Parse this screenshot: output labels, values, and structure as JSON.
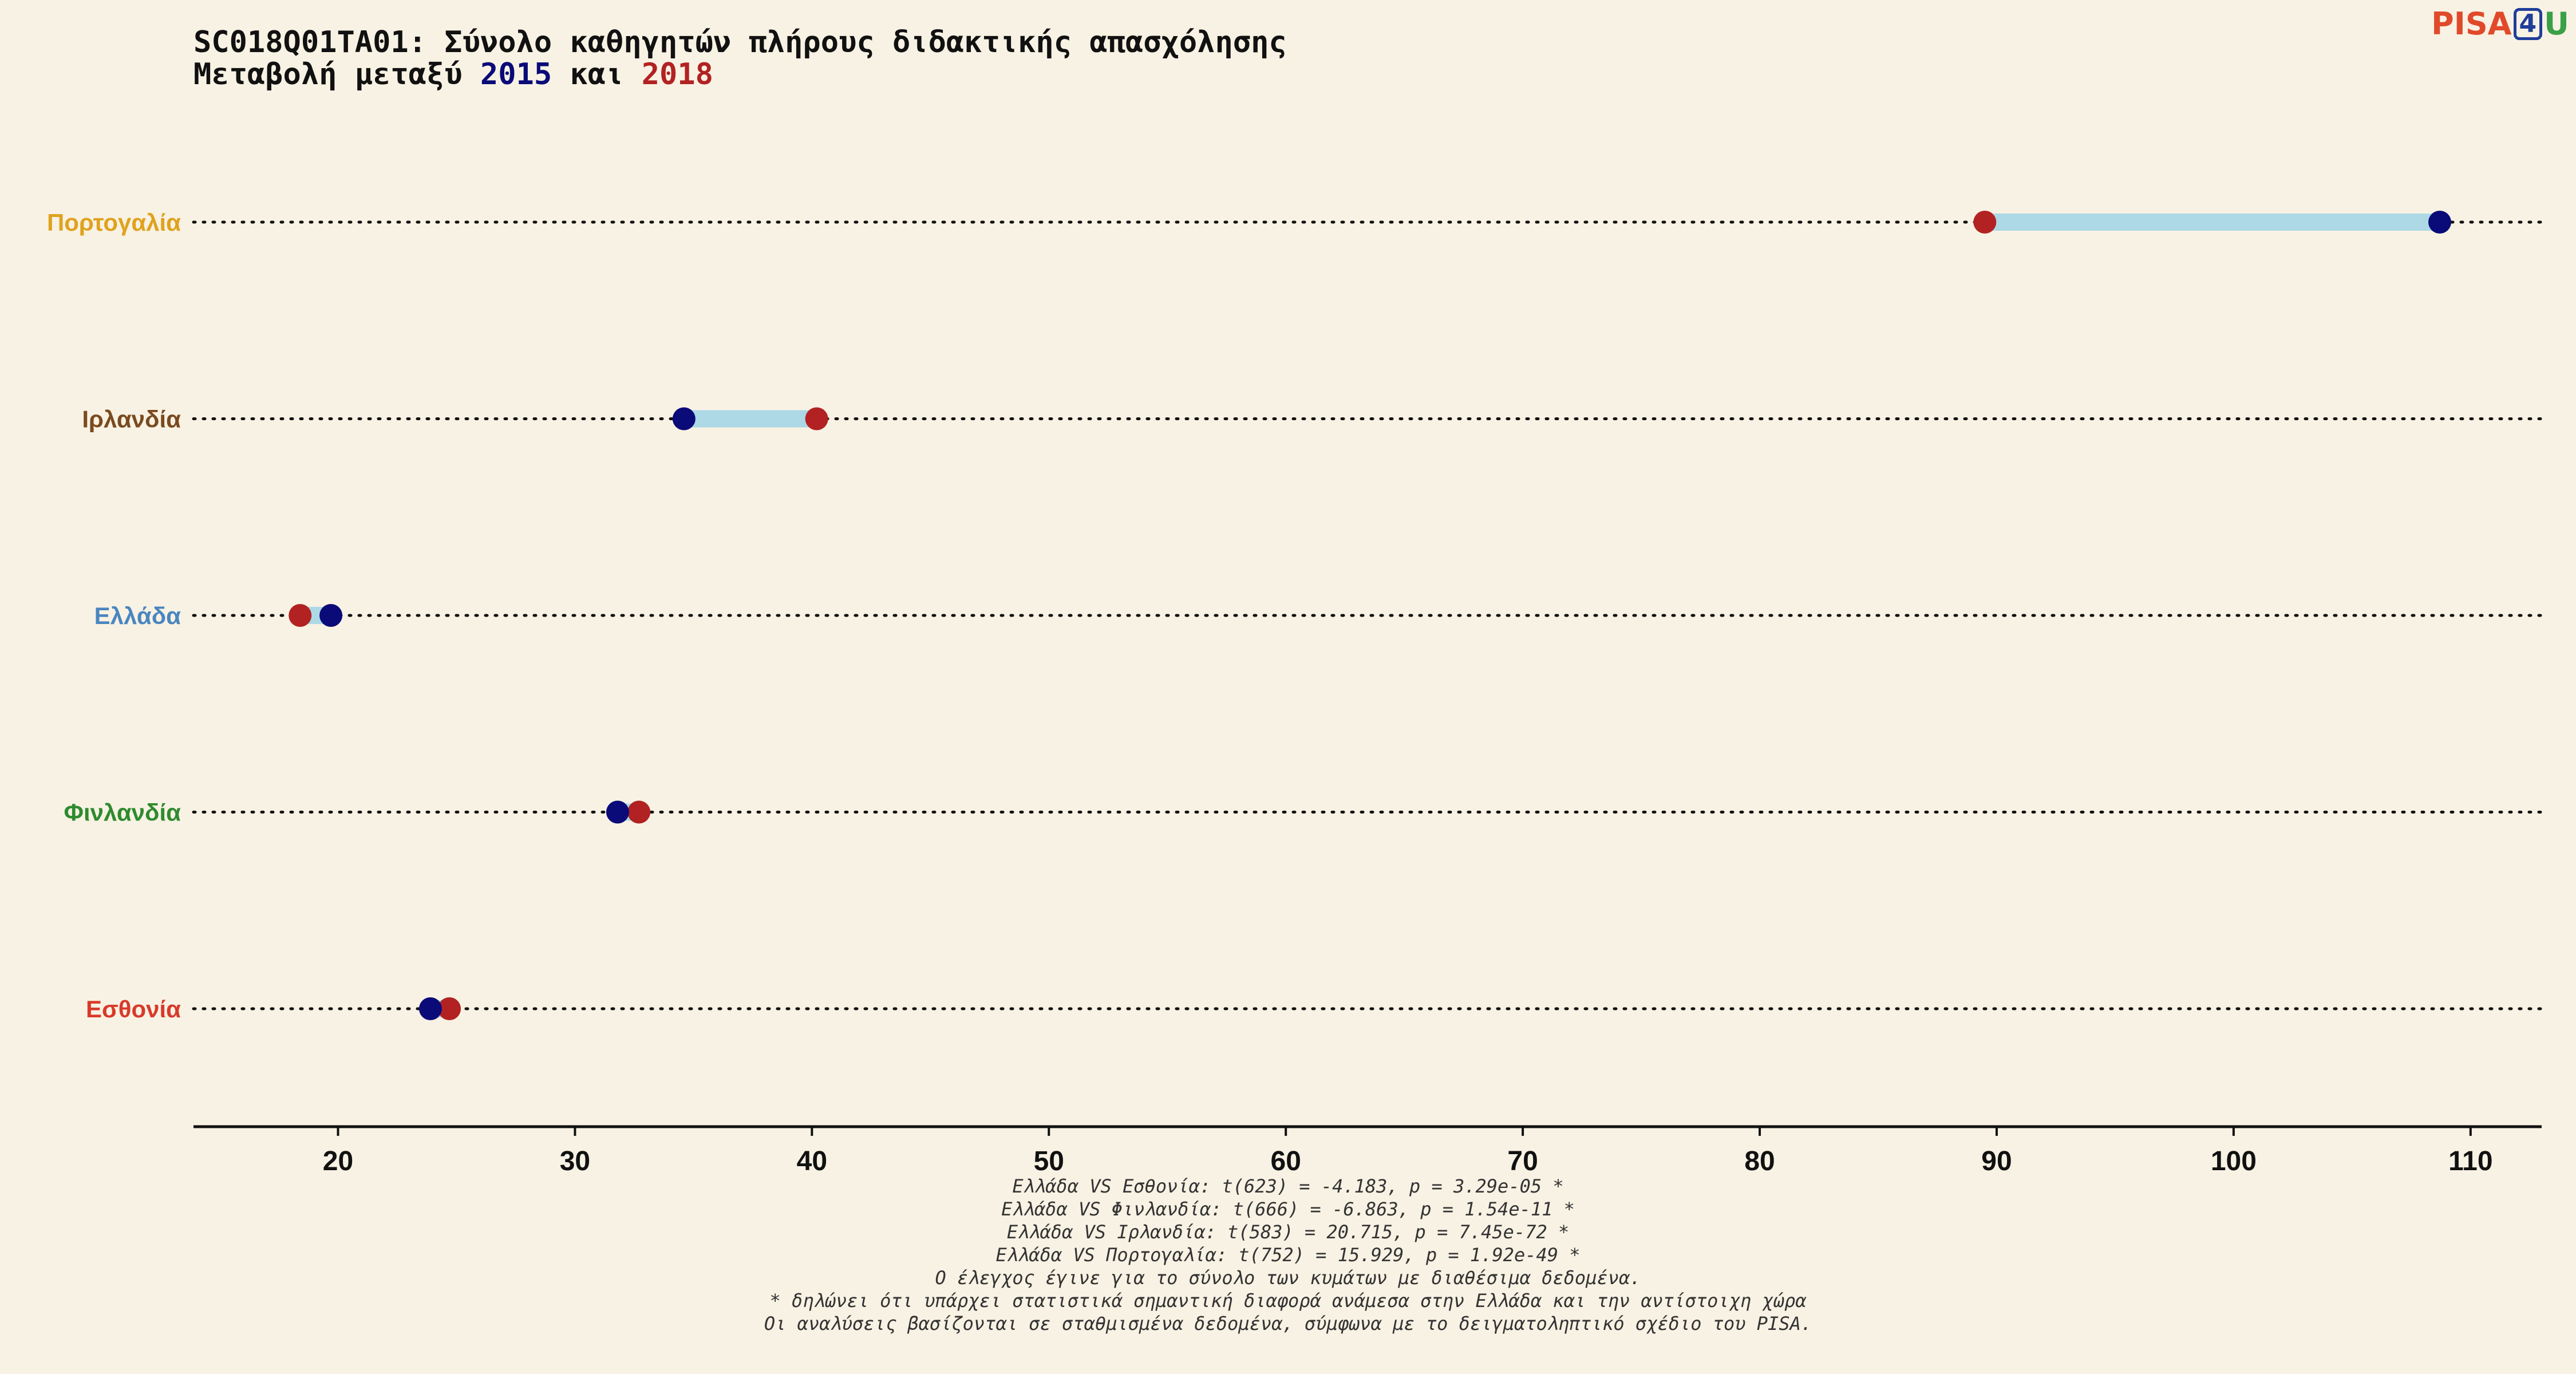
{
  "title": "SC018Q01TA01: Σύνολο καθηγητών πλήρους διδακτικής απασχόλησης",
  "subtitle_prefix": "Μεταβολή μεταξύ ",
  "subtitle_year1": "2015",
  "subtitle_mid": " και ",
  "subtitle_year2": "2018",
  "logo": {
    "pisa": "PISA",
    "four": "4",
    "u": "U"
  },
  "colors": {
    "background": "#f8f2e4",
    "y2015": "#0a0a78",
    "y2018": "#b22222",
    "range_bar": "#add8e6"
  },
  "chart_data": {
    "type": "dumbbell",
    "series": [
      {
        "name": "2015",
        "color": "#0a0a78"
      },
      {
        "name": "2018",
        "color": "#b22222"
      }
    ],
    "categories": [
      {
        "name": "Πορτογαλία",
        "color": "#e0a21e",
        "v2015": 108.7,
        "v2018": 89.5
      },
      {
        "name": "Ιρλανδία",
        "color": "#7a4a1e",
        "v2015": 34.6,
        "v2018": 40.2
      },
      {
        "name": "Ελλάδα",
        "color": "#4a86c0",
        "v2015": 19.7,
        "v2018": 18.4
      },
      {
        "name": "Φινλανδία",
        "color": "#2e8b2e",
        "v2015": 31.8,
        "v2018": 32.7
      },
      {
        "name": "Εσθονία",
        "color": "#d83a2a",
        "v2015": 23.9,
        "v2018": 24.7
      }
    ],
    "xlim": [
      13.9,
      113
    ],
    "xticks": [
      20,
      30,
      40,
      50,
      60,
      70,
      80,
      90,
      100,
      110
    ]
  },
  "notes": [
    "Ελλάδα VS Εσθονία: t(623) = -4.183, p = 3.29e-05 *",
    "Ελλάδα VS Φινλανδία: t(666) = -6.863, p = 1.54e-11 *",
    "Ελλάδα VS Ιρλανδία: t(583) = 20.715, p = 7.45e-72 *",
    "Ελλάδα VS Πορτογαλία: t(752) = 15.929, p = 1.92e-49 *",
    "Ο έλεγχος έγινε για το σύνολο των κυμάτων με διαθέσιμα δεδομένα.",
    "* δηλώνει ότι υπάρχει στατιστικά σημαντική διαφορά ανάμεσα στην Ελλάδα και την αντίστοιχη χώρα",
    "Οι αναλύσεις βασίζονται σε σταθμισμένα δεδομένα, σύμφωνα με το δειγματοληπτικό σχέδιο του PISA."
  ]
}
